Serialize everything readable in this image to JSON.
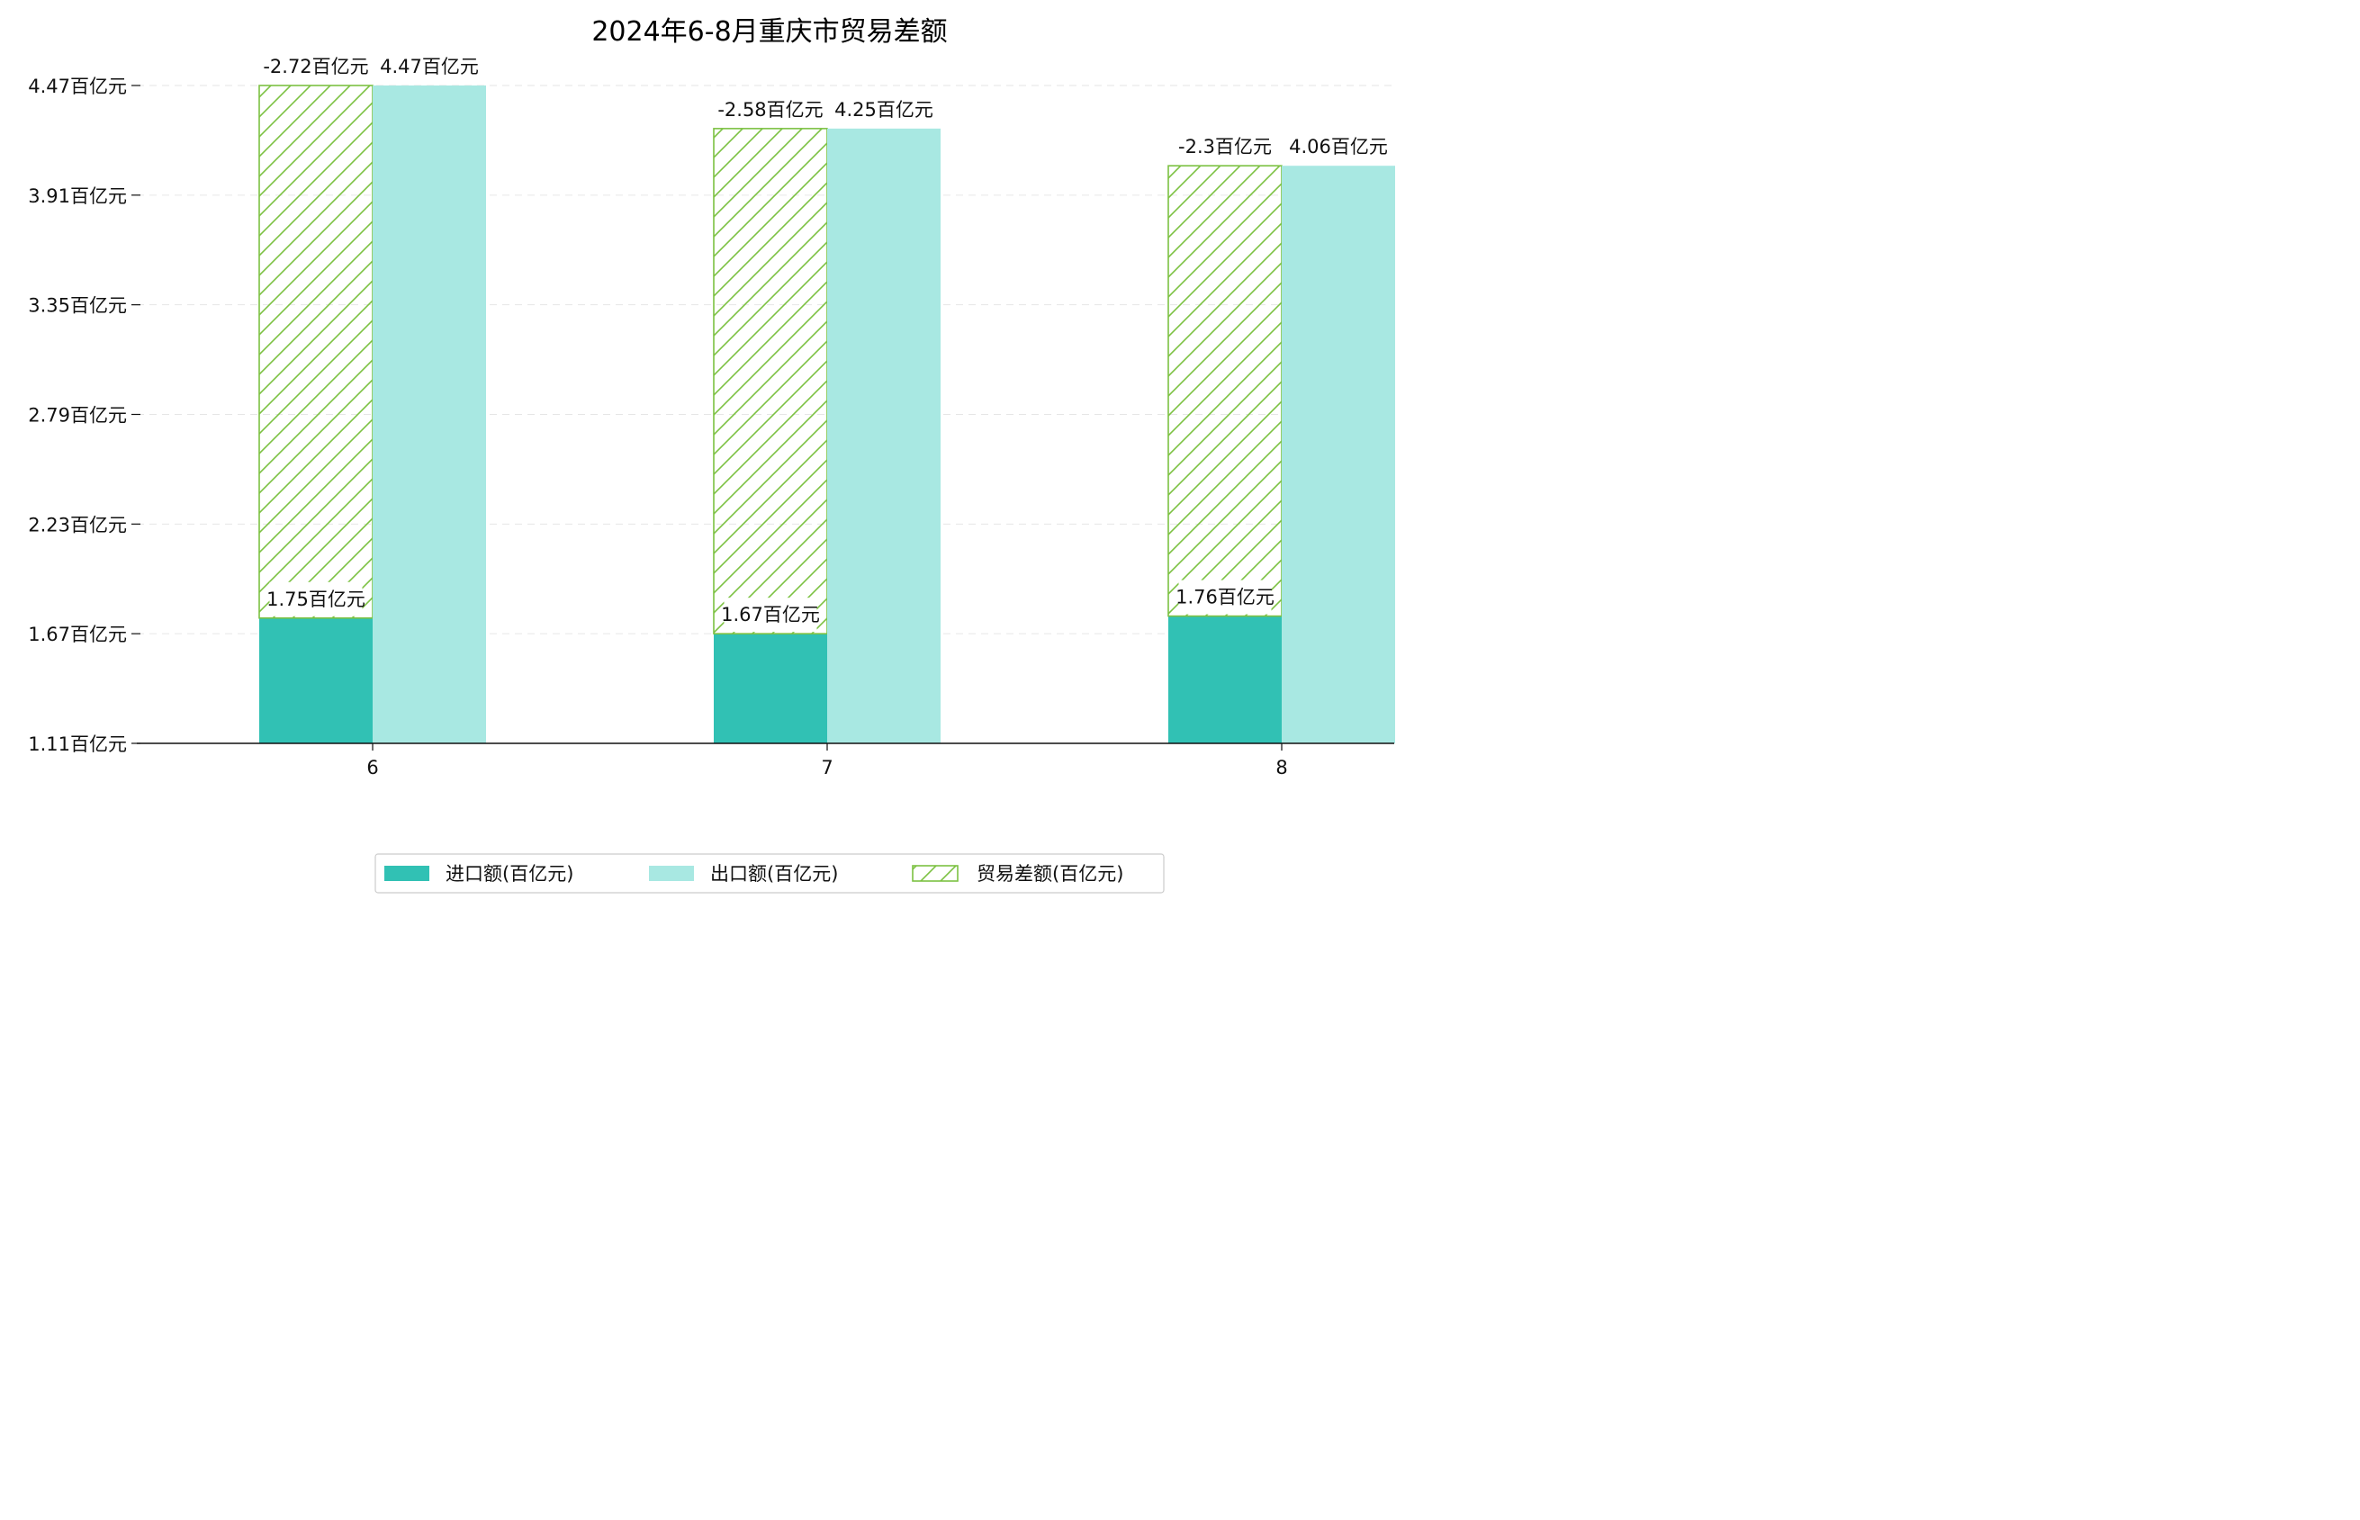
{
  "chart_data": {
    "type": "bar",
    "title": "2024年6-8月重庆市贸易差额",
    "categories": [
      "6",
      "7",
      "8"
    ],
    "unit": "百亿元",
    "yticks": [
      1.11,
      1.67,
      2.23,
      2.79,
      3.35,
      3.91,
      4.47
    ],
    "ytick_labels": [
      "1.11百亿元",
      "1.67百亿元",
      "2.23百亿元",
      "2.79百亿元",
      "3.35百亿元",
      "3.91百亿元",
      "4.47百亿元"
    ],
    "ylim": [
      1.11,
      4.47
    ],
    "grid": "horizontal dashed",
    "legend_position": "bottom-center",
    "series": [
      {
        "name": "进口额(百亿元)",
        "values": [
          1.75,
          1.67,
          1.76
        ],
        "labels": [
          "1.75百亿元",
          "1.67百亿元",
          "1.76百亿元"
        ],
        "color": "#31c1b4",
        "style": "solid"
      },
      {
        "name": "出口额(百亿元)",
        "values": [
          4.47,
          4.25,
          4.06
        ],
        "labels": [
          "4.47百亿元",
          "4.25百亿元",
          "4.06百亿元"
        ],
        "color": "#a8e8e2",
        "style": "solid"
      },
      {
        "name": "贸易差额(百亿元)",
        "values": [
          -2.72,
          -2.58,
          -2.3
        ],
        "labels": [
          "-2.72百亿元",
          "-2.58百亿元",
          "-2.3百亿元"
        ],
        "color": "#7cc142",
        "style": "hatched",
        "stacked_on": "进口额(百亿元)"
      }
    ]
  }
}
